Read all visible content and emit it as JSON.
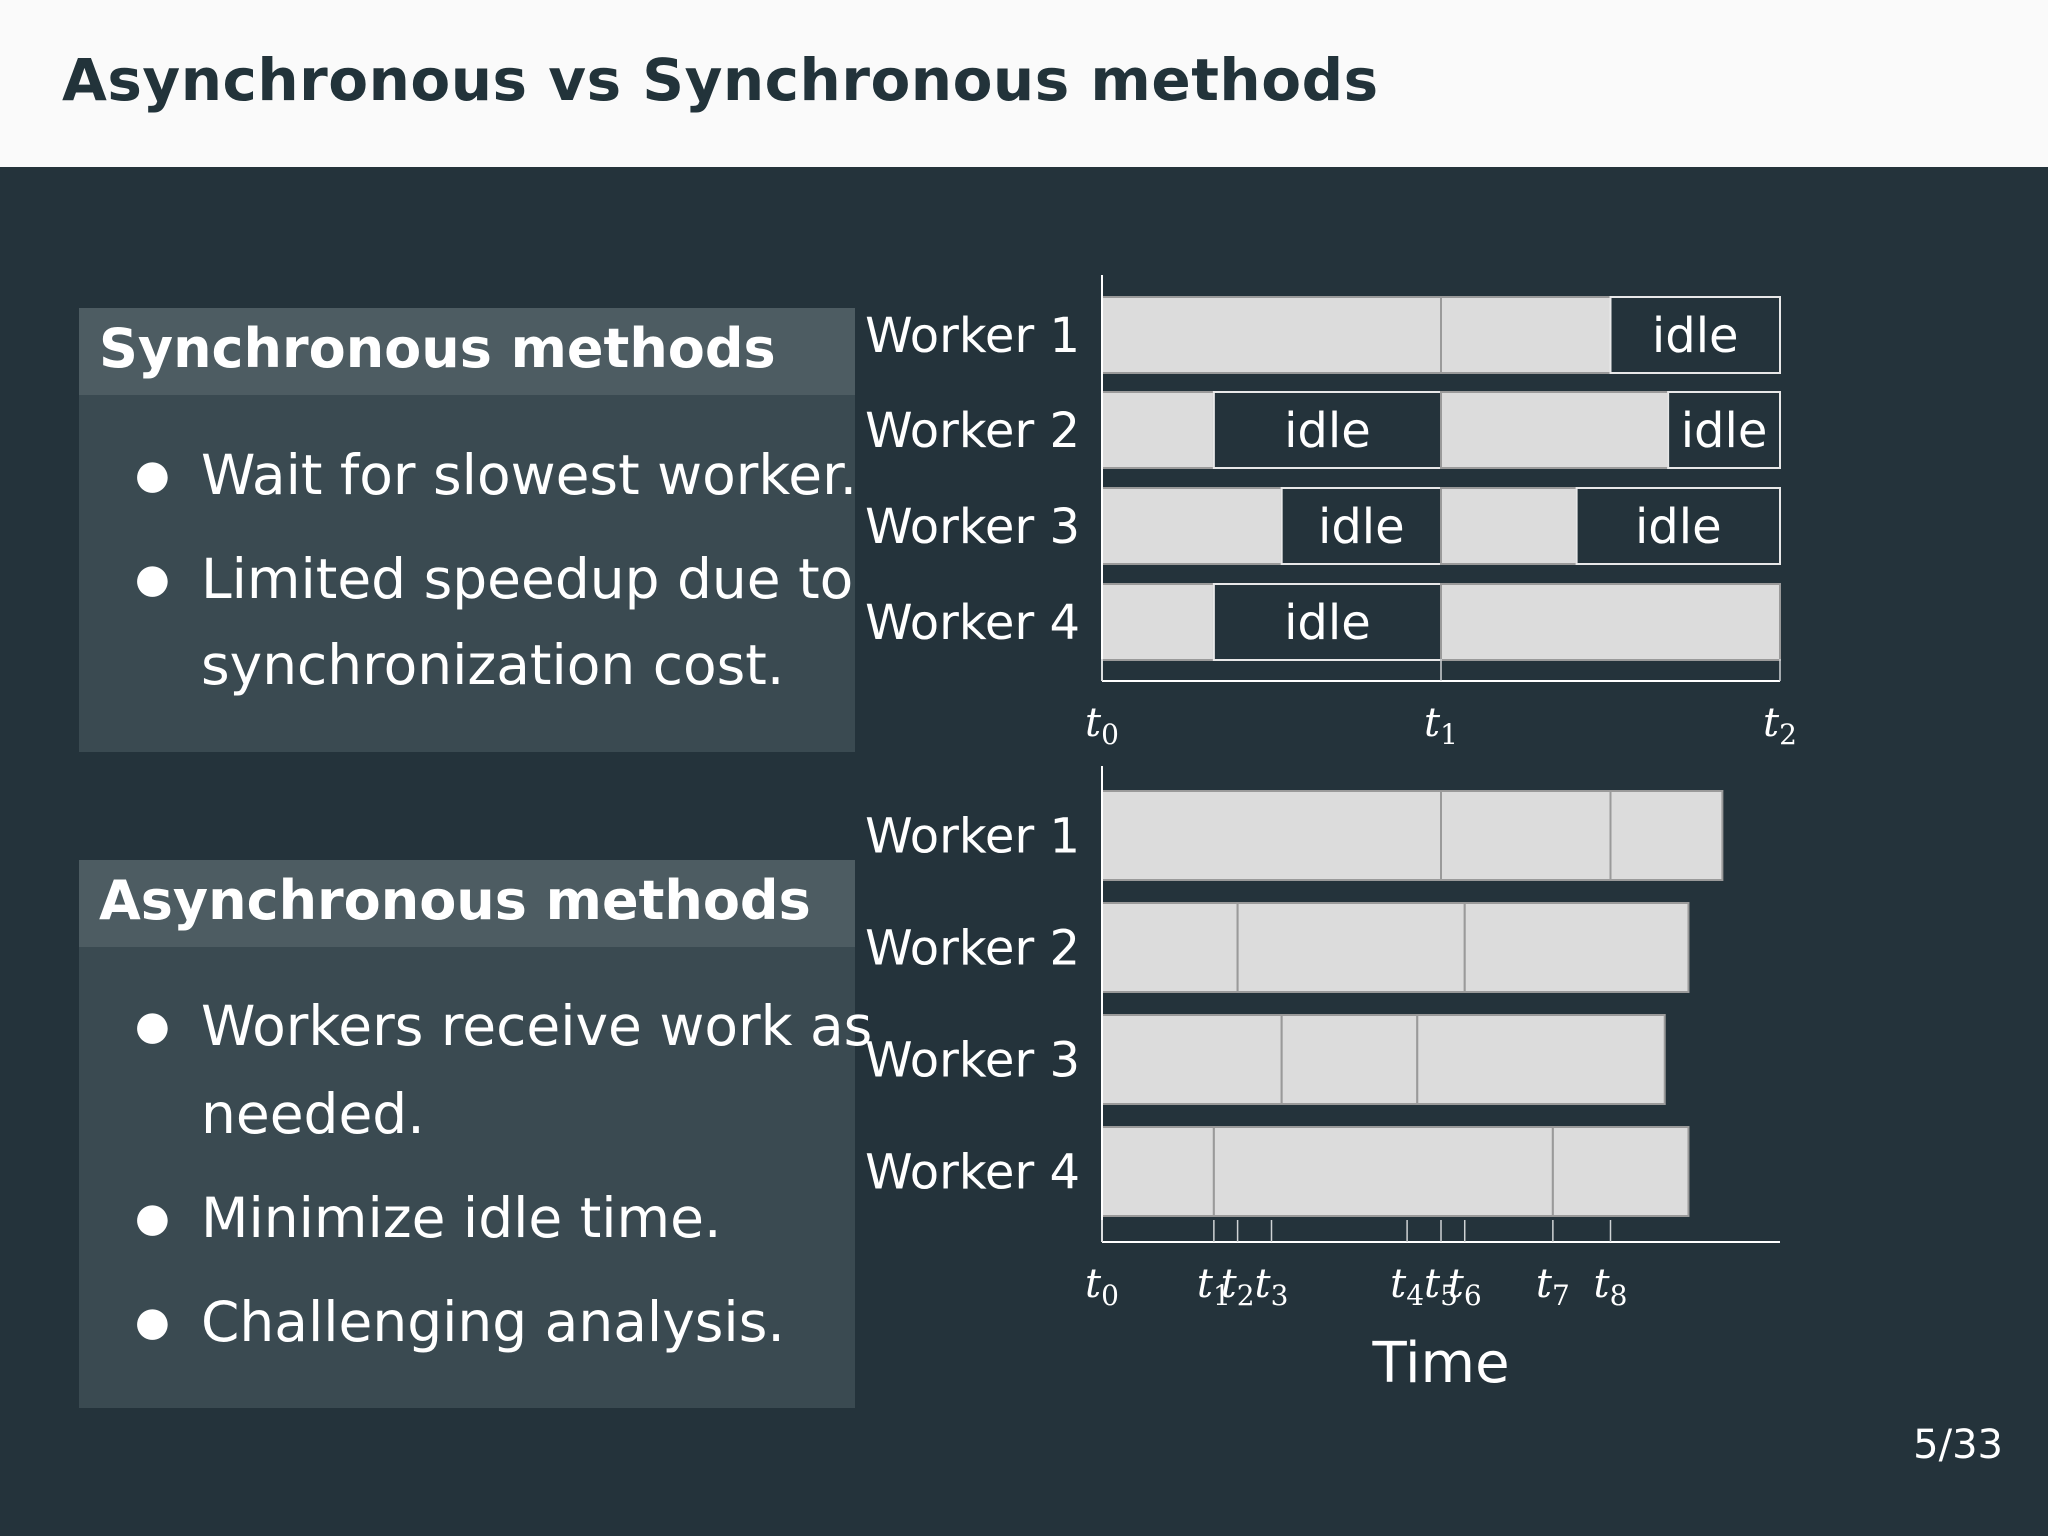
{
  "slide": {
    "title": "Asynchronous vs Synchronous methods",
    "page_number": "5/33"
  },
  "sync_block": {
    "heading": "Synchronous methods",
    "bullets": [
      "Wait for slowest worker.",
      "Limited speedup due to",
      "synchronization cost."
    ]
  },
  "async_block": {
    "heading": "Asynchronous methods",
    "bullets": [
      "Workers receive work as",
      "needed.",
      "Minimize idle time.",
      "Challenging analysis."
    ]
  },
  "colors": {
    "background": "#24333b",
    "busy": "#dcdcdc",
    "idle": "#24333b",
    "title_bar": "#fafafa"
  },
  "chart_data": [
    {
      "type": "gantt",
      "name": "synchronous",
      "workers": [
        "Worker 1",
        "Worker 2",
        "Worker 3",
        "Worker 4"
      ],
      "x_ticks": [
        {
          "label": "t",
          "sub": "0",
          "t": 0
        },
        {
          "label": "t",
          "sub": "1",
          "t": 1
        },
        {
          "label": "t",
          "sub": "2",
          "t": 2
        }
      ],
      "segments": [
        [
          {
            "start": 0,
            "end": 1,
            "state": "busy"
          },
          {
            "start": 1,
            "end": 1.5,
            "state": "busy"
          },
          {
            "start": 1.5,
            "end": 2,
            "state": "idle",
            "label": "idle"
          }
        ],
        [
          {
            "start": 0,
            "end": 0.33,
            "state": "busy"
          },
          {
            "start": 0.33,
            "end": 1,
            "state": "idle",
            "label": "idle"
          },
          {
            "start": 1,
            "end": 1.67,
            "state": "busy"
          },
          {
            "start": 1.67,
            "end": 2,
            "state": "idle",
            "label": "idle"
          }
        ],
        [
          {
            "start": 0,
            "end": 0.53,
            "state": "busy"
          },
          {
            "start": 0.53,
            "end": 1,
            "state": "idle",
            "label": "idle"
          },
          {
            "start": 1,
            "end": 1.4,
            "state": "busy"
          },
          {
            "start": 1.4,
            "end": 2,
            "state": "idle",
            "label": "idle"
          }
        ],
        [
          {
            "start": 0,
            "end": 0.33,
            "state": "busy"
          },
          {
            "start": 0.33,
            "end": 1,
            "state": "idle",
            "label": "idle"
          },
          {
            "start": 1,
            "end": 2,
            "state": "busy"
          }
        ]
      ]
    },
    {
      "type": "gantt",
      "name": "asynchronous",
      "workers": [
        "Worker 1",
        "Worker 2",
        "Worker 3",
        "Worker 4"
      ],
      "xlabel": "Time",
      "x_ticks": [
        {
          "label": "t",
          "sub": "0",
          "t": 0
        },
        {
          "label": "t",
          "sub": "1",
          "t": 0.33
        },
        {
          "label": "t",
          "sub": "2",
          "t": 0.4
        },
        {
          "label": "t",
          "sub": "3",
          "t": 0.5
        },
        {
          "label": "t",
          "sub": "4",
          "t": 0.9
        },
        {
          "label": "t",
          "sub": "5",
          "t": 1.0
        },
        {
          "label": "t",
          "sub": "6",
          "t": 1.07
        },
        {
          "label": "t",
          "sub": "7",
          "t": 1.33
        },
        {
          "label": "t",
          "sub": "8",
          "t": 1.5
        }
      ],
      "segments": [
        [
          {
            "start": 0,
            "end": 1,
            "state": "busy"
          },
          {
            "start": 1,
            "end": 1.5,
            "state": "busy"
          },
          {
            "start": 1.5,
            "end": 1.83,
            "state": "busy"
          }
        ],
        [
          {
            "start": 0,
            "end": 0.4,
            "state": "busy"
          },
          {
            "start": 0.4,
            "end": 1.07,
            "state": "busy"
          },
          {
            "start": 1.07,
            "end": 1.73,
            "state": "busy"
          }
        ],
        [
          {
            "start": 0,
            "end": 0.53,
            "state": "busy"
          },
          {
            "start": 0.53,
            "end": 0.93,
            "state": "busy"
          },
          {
            "start": 0.93,
            "end": 1.66,
            "state": "busy"
          }
        ],
        [
          {
            "start": 0,
            "end": 0.33,
            "state": "busy"
          },
          {
            "start": 0.33,
            "end": 1.33,
            "state": "busy"
          },
          {
            "start": 1.33,
            "end": 1.73,
            "state": "busy"
          }
        ]
      ]
    }
  ]
}
